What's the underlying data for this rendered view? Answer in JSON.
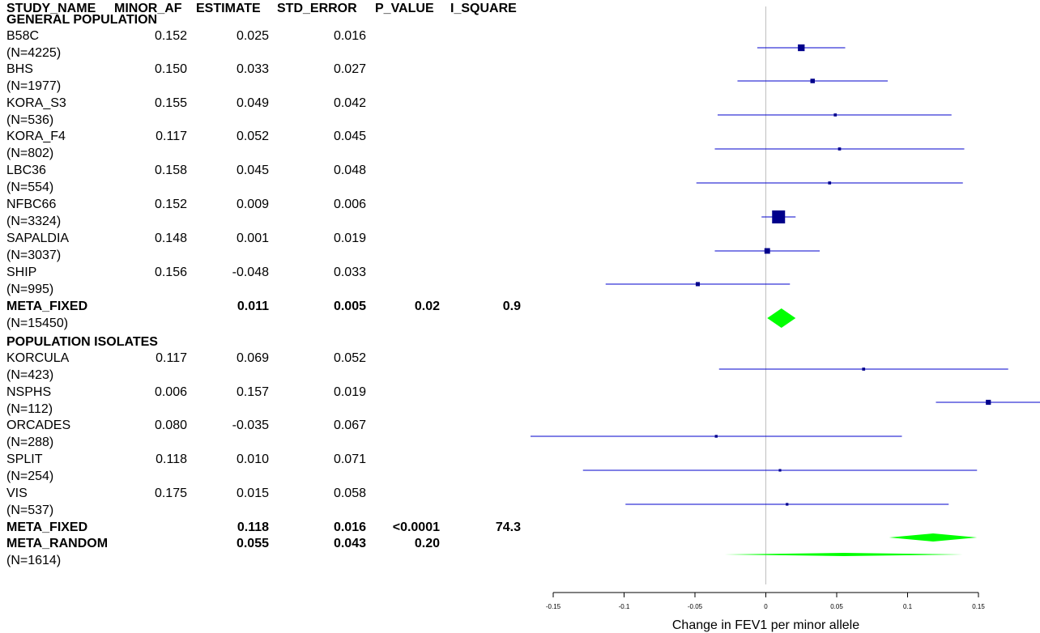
{
  "headers": [
    "STUDY_NAME",
    "MINOR_AF",
    "ESTIMATE",
    "STD_ERROR",
    "P_VALUE",
    "I_SQUARE"
  ],
  "rows": [
    {
      "kind": "group",
      "name": "GENERAL POPULATION"
    },
    {
      "kind": "study",
      "name": "B58C",
      "n": "(N=4225)",
      "maf": "0.152",
      "est": "0.025",
      "se": "0.016"
    },
    {
      "kind": "study",
      "name": "BHS",
      "n": "(N=1977)",
      "maf": "0.150",
      "est": "0.033",
      "se": "0.027"
    },
    {
      "kind": "study",
      "name": "KORA_S3",
      "n": "(N=536)",
      "maf": "0.155",
      "est": "0.049",
      "se": "0.042"
    },
    {
      "kind": "study",
      "name": "KORA_F4",
      "n": "(N=802)",
      "maf": "0.117",
      "est": "0.052",
      "se": "0.045"
    },
    {
      "kind": "study",
      "name": "LBC36",
      "n": "(N=554)",
      "maf": "0.158",
      "est": "0.045",
      "se": "0.048"
    },
    {
      "kind": "study",
      "name": "NFBC66",
      "n": "(N=3324)",
      "maf": "0.152",
      "est": "0.009",
      "se": "0.006"
    },
    {
      "kind": "study",
      "name": "SAPALDIA",
      "n": "(N=3037)",
      "maf": "0.148",
      "est": "0.001",
      "se": "0.019"
    },
    {
      "kind": "study",
      "name": "SHIP",
      "n": "(N=995)",
      "maf": "0.156",
      "est": "-0.048",
      "se": "0.033"
    },
    {
      "kind": "meta",
      "name": "META_FIXED",
      "n": "(N=15450)",
      "est": "0.011",
      "se": "0.005",
      "p": "0.02",
      "i2": "0.9"
    },
    {
      "kind": "group",
      "name": "POPULATION ISOLATES"
    },
    {
      "kind": "study",
      "name": "KORCULA",
      "n": "(N=423)",
      "maf": "0.117",
      "est": "0.069",
      "se": "0.052"
    },
    {
      "kind": "study",
      "name": "NSPHS",
      "n": "(N=112)",
      "maf": "0.006",
      "est": "0.157",
      "se": "0.019"
    },
    {
      "kind": "study",
      "name": "ORCADES",
      "n": "(N=288)",
      "maf": "0.080",
      "est": "-0.035",
      "se": "0.067"
    },
    {
      "kind": "study",
      "name": "SPLIT",
      "n": "(N=254)",
      "maf": "0.118",
      "est": "0.010",
      "se": "0.071"
    },
    {
      "kind": "study",
      "name": "VIS",
      "n": "(N=537)",
      "maf": "0.175",
      "est": "0.015",
      "se": "0.058"
    },
    {
      "kind": "meta",
      "name": "META_FIXED",
      "est": "0.118",
      "se": "0.016",
      "p": "<0.0001",
      "i2": "74.3"
    },
    {
      "kind": "meta",
      "name": "META_RANDOM",
      "n": "(N=1614)",
      "est": "0.055",
      "se": "0.043",
      "p": "0.20"
    }
  ],
  "chart_data": {
    "type": "forest",
    "xlabel": "Change in FEV1 per minor allele",
    "xlim": [
      -0.15,
      0.15
    ],
    "xticks": [
      "-0.15",
      "-0.1",
      "-0.05",
      "0",
      "0.05",
      "0.1",
      "0.15"
    ],
    "colors": {
      "study": "#00008b",
      "ci": "#0000cd",
      "meta": "#00ff00",
      "refline": "#c0c0c0"
    },
    "studies": [
      {
        "name": "B58C",
        "estimate": 0.025,
        "ci": [
          -0.006,
          0.056
        ],
        "weight": 0.45
      },
      {
        "name": "BHS",
        "estimate": 0.033,
        "ci": [
          -0.02,
          0.086
        ],
        "weight": 0.25
      },
      {
        "name": "KORA_S3",
        "estimate": 0.049,
        "ci": [
          -0.034,
          0.131
        ],
        "weight": 0.12
      },
      {
        "name": "KORA_F4",
        "estimate": 0.052,
        "ci": [
          -0.036,
          0.14
        ],
        "weight": 0.12
      },
      {
        "name": "LBC36",
        "estimate": 0.045,
        "ci": [
          -0.049,
          0.139
        ],
        "weight": 0.12
      },
      {
        "name": "NFBC66",
        "estimate": 0.009,
        "ci": [
          -0.003,
          0.021
        ],
        "weight": 1.0
      },
      {
        "name": "SAPALDIA",
        "estimate": 0.001,
        "ci": [
          -0.036,
          0.038
        ],
        "weight": 0.35
      },
      {
        "name": "SHIP",
        "estimate": -0.048,
        "ci": [
          -0.113,
          0.017
        ],
        "weight": 0.22
      },
      {
        "name": "META_FIXED",
        "estimate": 0.011,
        "ci": [
          0.001,
          0.021
        ],
        "meta": true
      },
      {
        "name": "KORCULA",
        "estimate": 0.069,
        "ci": [
          -0.033,
          0.171
        ],
        "weight": 0.12
      },
      {
        "name": "NSPHS",
        "estimate": 0.157,
        "ci": [
          0.12,
          0.194
        ],
        "weight": 0.3
      },
      {
        "name": "ORCADES",
        "estimate": -0.035,
        "ci": [
          -0.166,
          0.096
        ],
        "weight": 0.1
      },
      {
        "name": "SPLIT",
        "estimate": 0.01,
        "ci": [
          -0.129,
          0.149
        ],
        "weight": 0.08
      },
      {
        "name": "VIS",
        "estimate": 0.015,
        "ci": [
          -0.099,
          0.129
        ],
        "weight": 0.09
      },
      {
        "name": "META_FIXED",
        "estimate": 0.118,
        "ci": [
          0.087,
          0.149
        ],
        "meta": true
      },
      {
        "name": "META_RANDOM",
        "estimate": 0.055,
        "ci": [
          -0.029,
          0.139
        ],
        "meta": true
      }
    ]
  }
}
